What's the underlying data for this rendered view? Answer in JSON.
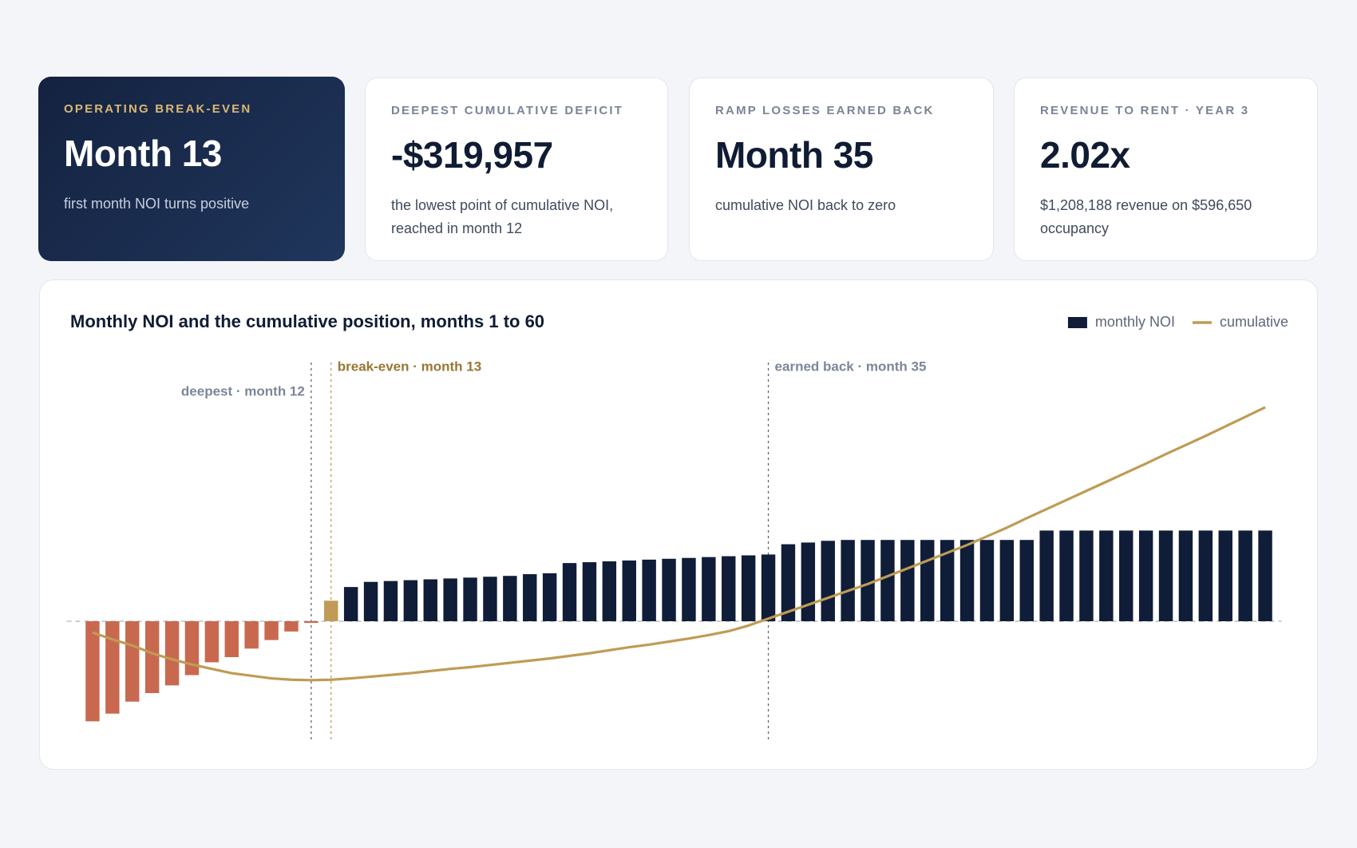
{
  "cards": [
    {
      "label": "Operating break-even",
      "value": "Month 13",
      "note": "first month NOI turns positive"
    },
    {
      "label": "Deepest cumulative deficit",
      "value": "-$319,957",
      "note": "the lowest point of cumulative NOI, reached in month 12"
    },
    {
      "label": "Ramp losses earned back",
      "value": "Month 35",
      "note": "cumulative NOI back to zero"
    },
    {
      "label": "Revenue to rent · Year 3",
      "value": "2.02x",
      "note": "$1,208,188 revenue on $596,650 occupancy"
    }
  ],
  "chart_data": {
    "type": "bar",
    "title": "Monthly NOI and the cumulative position, months 1 to 60",
    "x": [
      1,
      2,
      3,
      4,
      5,
      6,
      7,
      8,
      9,
      10,
      11,
      12,
      13,
      14,
      15,
      16,
      17,
      18,
      19,
      20,
      21,
      22,
      23,
      24,
      25,
      26,
      27,
      28,
      29,
      30,
      31,
      32,
      33,
      34,
      35,
      36,
      37,
      38,
      39,
      40,
      41,
      42,
      43,
      44,
      45,
      46,
      47,
      48,
      49,
      50,
      51,
      52,
      53,
      54,
      55,
      56,
      57,
      58,
      59,
      60
    ],
    "xlim": [
      0.5,
      60.5
    ],
    "ylim": [
      -42000,
      84000
    ],
    "y2lim": [
      -650000,
      1300000
    ],
    "series": [
      {
        "name": "monthly NOI",
        "color": "#101d38",
        "negative_color": "#c8694f",
        "highlight_color": "#bf9b55",
        "values": [
          -35100,
          -32400,
          -28200,
          -25200,
          -22500,
          -18900,
          -14400,
          -12600,
          -9600,
          -6600,
          -3600,
          -600,
          7200,
          12000,
          13800,
          14100,
          14400,
          14700,
          15000,
          15300,
          15600,
          15900,
          16500,
          16800,
          20400,
          20700,
          21000,
          21300,
          21600,
          21900,
          22200,
          22500,
          22800,
          23100,
          23400,
          27000,
          27600,
          28200,
          28500,
          28500,
          28500,
          28500,
          28500,
          28500,
          28500,
          28500,
          28500,
          28500,
          31800,
          31800,
          31800,
          31800,
          31800,
          31800,
          31800,
          31800,
          31800,
          31800,
          31800,
          31800
        ]
      },
      {
        "name": "cumulative",
        "color": "#bf9b55",
        "axis": "y2",
        "values": [
          -61100,
          -98700,
          -131600,
          -173900,
          -206800,
          -235000,
          -258500,
          -282000,
          -296100,
          -310200,
          -317300,
          -319957,
          -317300,
          -310200,
          -300800,
          -291400,
          -282000,
          -270300,
          -258500,
          -249100,
          -237400,
          -225600,
          -213900,
          -202100,
          -188000,
          -173900,
          -157500,
          -141000,
          -126900,
          -110500,
          -94000,
          -75200,
          -54100,
          -23500,
          14100,
          51700,
          89300,
          126900,
          164500,
          202100,
          244400,
          286700,
          329000,
          371300,
          413600,
          460600,
          507600,
          559300,
          608700,
          658000,
          707400,
          756700,
          806100,
          855400,
          907100,
          956500,
          1005800,
          1057500,
          1109200,
          1160900
        ]
      }
    ],
    "annotations": [
      {
        "x": 12,
        "label": "deepest · month 12",
        "color": "#5d6778",
        "text_color": "#7d8698",
        "side": "left"
      },
      {
        "x": 13,
        "label": "break-even · month 13",
        "color": "#bf9b55",
        "text_color": "#987633",
        "side": "right"
      },
      {
        "x": 35,
        "label": "earned back · month 35",
        "color": "#5d6778",
        "text_color": "#7d8698",
        "side": "right"
      }
    ],
    "legend": "top-right"
  }
}
